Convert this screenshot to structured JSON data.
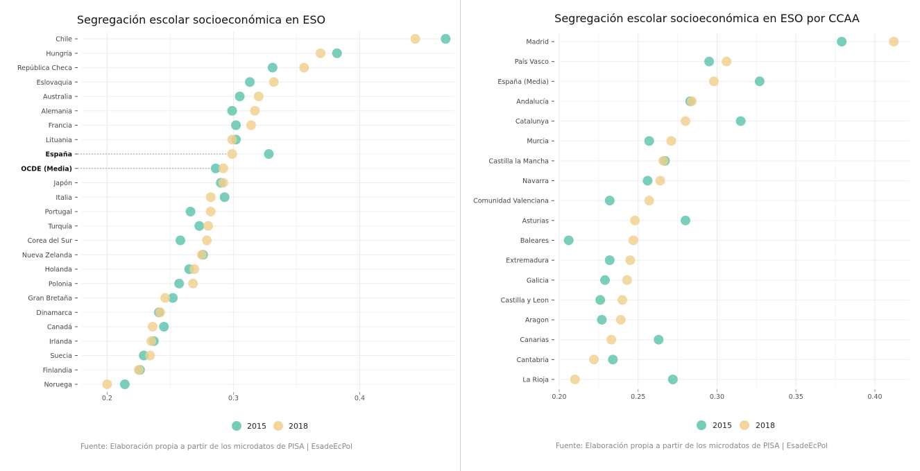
{
  "colors": {
    "s2015": "#5cc3ad",
    "s2018": "#f2cf8c",
    "grid": "#eeeeee"
  },
  "chart_data": [
    {
      "type": "scatter",
      "title": "Segregación escolar socioeconómica en ESO",
      "categories": [
        "Chile",
        "Hungría",
        "República Checa",
        "Eslovaquia",
        "Australia",
        "Alemania",
        "Francia",
        "Lituania",
        "España",
        "OCDE (Media)",
        "Japón",
        "Italia",
        "Portugal",
        "Turquía",
        "Corea del Sur",
        "Nueva Zelanda",
        "Holanda",
        "Polonia",
        "Gran Bretaña",
        "Dinamarca",
        "Canadá",
        "Irlanda",
        "Suecia",
        "Finlandia",
        "Noruega"
      ],
      "highlight": [
        "España",
        "OCDE (Media)"
      ],
      "xlim": [
        0.18,
        0.475
      ],
      "xticks": [
        0.2,
        0.3,
        0.4
      ],
      "xtick_labels": [
        "0.2",
        "0.3",
        "0.4"
      ],
      "series": [
        {
          "name": "2015",
          "values": [
            0.468,
            0.382,
            0.331,
            0.313,
            0.305,
            0.299,
            0.302,
            0.302,
            0.328,
            0.286,
            0.29,
            0.293,
            0.266,
            0.273,
            0.258,
            0.276,
            0.265,
            0.257,
            0.252,
            0.241,
            0.245,
            0.237,
            0.229,
            0.226,
            0.214
          ]
        },
        {
          "name": "2018",
          "values": [
            0.444,
            0.369,
            0.356,
            0.332,
            0.32,
            0.317,
            0.314,
            0.299,
            0.299,
            0.292,
            0.292,
            0.282,
            0.282,
            0.28,
            0.279,
            0.275,
            0.269,
            0.268,
            0.246,
            0.242,
            0.236,
            0.235,
            0.234,
            0.225,
            0.2
          ]
        }
      ],
      "legend": "bottom",
      "source": "Fuente: Elaboración propia a partir de los microdatos de PISA | EsadeEcPol"
    },
    {
      "type": "scatter",
      "title": "Segregación escolar socioeconómica en ESO por CCAA",
      "categories": [
        "Madrid",
        "País Vasco",
        "España (Media)",
        "Andalucía",
        "Catalunya",
        "Murcia",
        "Castilla la Mancha",
        "Navarra",
        "Comunidad Valenciana",
        "Asturias",
        "Baleares",
        "Extremadura",
        "Galicia",
        "Castilla y Leon",
        "Aragon",
        "Canarias",
        "Cantabria",
        "La Rioja"
      ],
      "highlight": [],
      "xlim": [
        0.2,
        0.422
      ],
      "xticks": [
        0.2,
        0.25,
        0.3,
        0.35,
        0.4
      ],
      "xtick_labels": [
        "0.20",
        "0.25",
        "0.30",
        "0.35",
        "0.40"
      ],
      "series": [
        {
          "name": "2015",
          "values": [
            0.379,
            0.295,
            0.327,
            0.283,
            0.315,
            0.257,
            0.267,
            0.256,
            0.232,
            0.28,
            0.206,
            0.232,
            0.229,
            0.226,
            0.227,
            0.263,
            0.234,
            0.272
          ]
        },
        {
          "name": "2018",
          "values": [
            0.412,
            0.306,
            0.298,
            0.284,
            0.28,
            0.271,
            0.266,
            0.264,
            0.257,
            0.248,
            0.247,
            0.245,
            0.243,
            0.24,
            0.239,
            0.233,
            0.222,
            0.21
          ]
        }
      ],
      "legend": "bottom",
      "source": "Fuente: Elaboración propia a partir de los microdatos de PISA | EsadeEcPol"
    }
  ]
}
